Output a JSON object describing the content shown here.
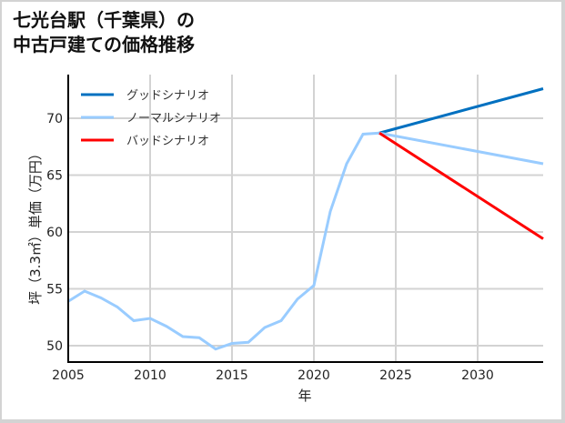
{
  "title_line1": "七光台駅（千葉県）の",
  "title_line2": "中古戸建ての価格推移",
  "chart_data": {
    "type": "line",
    "title": "七光台駅（千葉県）の中古戸建ての価格推移",
    "xlabel": "年",
    "ylabel": "坪（3.3㎡）単価（万円）",
    "xlim": [
      2005,
      2034
    ],
    "ylim": [
      48.5,
      74
    ],
    "x_ticks": [
      2005,
      2010,
      2015,
      2020,
      2025,
      2030
    ],
    "y_ticks": [
      50,
      55,
      60,
      65,
      70
    ],
    "grid": true,
    "legend_position": "upper left",
    "series": [
      {
        "name": "ノーマルシナリオ (historical)",
        "color": "#99ccff",
        "x": [
          2005,
          2006,
          2007,
          2008,
          2009,
          2010,
          2011,
          2012,
          2013,
          2014,
          2015,
          2016,
          2017,
          2018,
          2019,
          2020,
          2021,
          2022,
          2023,
          2024
        ],
        "values": [
          53.9,
          54.8,
          54.2,
          53.4,
          52.2,
          52.4,
          51.7,
          50.8,
          50.7,
          49.7,
          50.2,
          50.3,
          51.6,
          52.2,
          54.1,
          55.3,
          61.8,
          66.0,
          68.6,
          68.7
        ]
      },
      {
        "name": "グッドシナリオ",
        "color": "#0070c0",
        "x": [
          2024,
          2034
        ],
        "values": [
          68.7,
          72.6
        ]
      },
      {
        "name": "ノーマルシナリオ",
        "color": "#99ccff",
        "x": [
          2024,
          2034
        ],
        "values": [
          68.7,
          66.0
        ]
      },
      {
        "name": "バッドシナリオ",
        "color": "#ff0000",
        "x": [
          2024,
          2034
        ],
        "values": [
          68.7,
          59.4
        ]
      }
    ],
    "legend": [
      {
        "label": "グッドシナリオ",
        "color": "#0070c0"
      },
      {
        "label": "ノーマルシナリオ",
        "color": "#99ccff"
      },
      {
        "label": "バッドシナリオ",
        "color": "#ff0000"
      }
    ]
  }
}
